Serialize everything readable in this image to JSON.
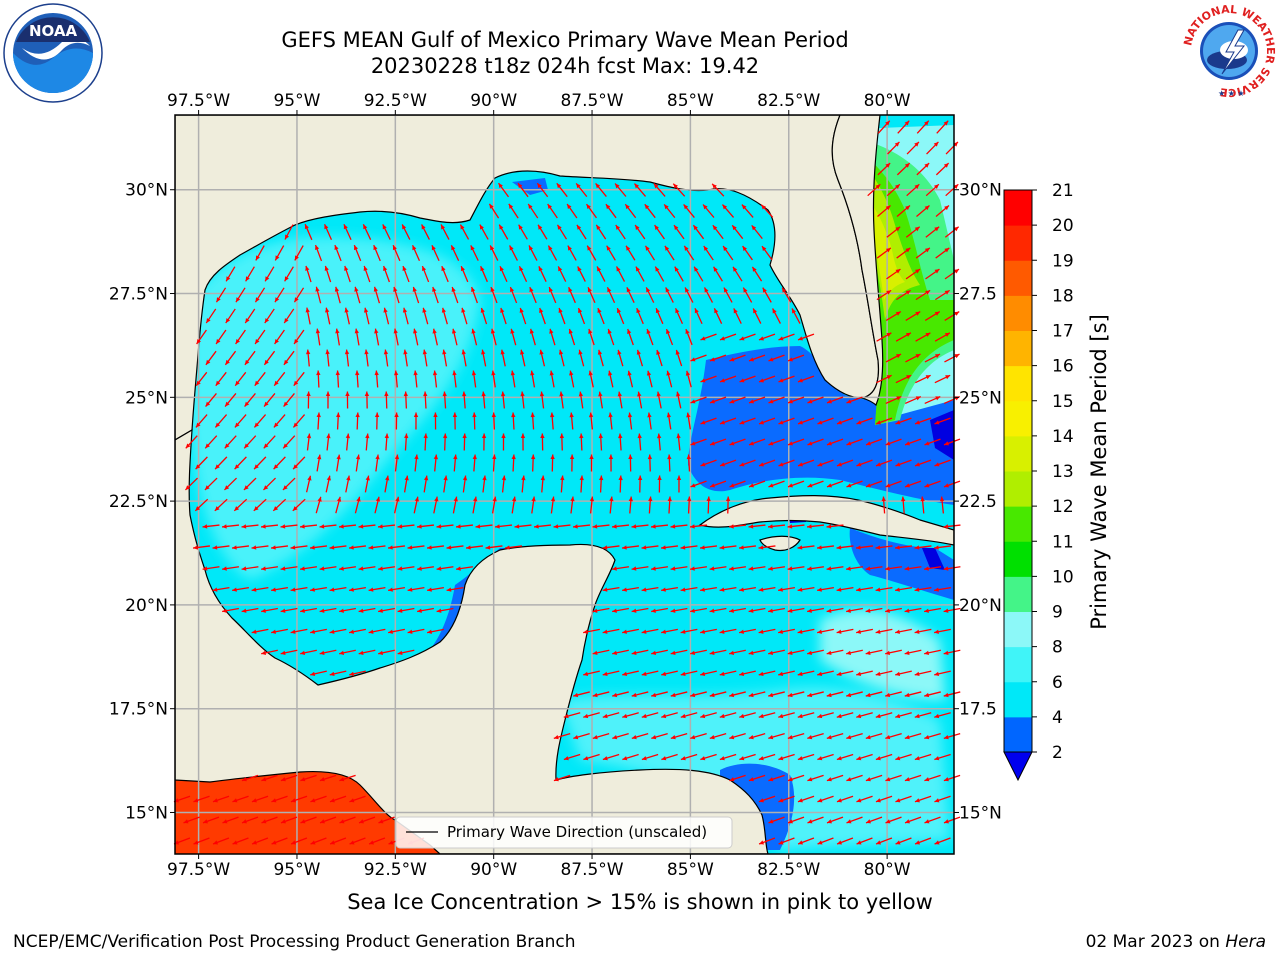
{
  "header": {
    "title_line1": "GEFS MEAN Gulf of Mexico Primary Wave Mean Period",
    "title_line2": "20230228 t18z 024h fcst   Max: 19.42"
  },
  "logos": {
    "noaa_text": "NOAA",
    "nws_ring_text": "NATIONAL WEATHER SERVICE"
  },
  "note": "Sea Ice Concentration > 15% is shown in pink to yellow",
  "footer": {
    "left": "NCEP/EMC/Verification Post Processing Product Generation Branch",
    "date": "02 Mar 2023 on ",
    "machine": "Hera"
  },
  "colors": {
    "land": "#efeddc",
    "ocean_bg": "#00e5f5",
    "grid": "#b0b0b0",
    "arrow": "#ff0000"
  },
  "chart_data": {
    "type": "heatmap",
    "variable": "Primary Wave Mean Period",
    "units": "s",
    "max_value": 19.42,
    "lon_ticks": [
      "97.5°W",
      "95°W",
      "92.5°W",
      "90°W",
      "87.5°W",
      "85°W",
      "82.5°W",
      "80°W"
    ],
    "lon_values": [
      -97.5,
      -95,
      -92.5,
      -90,
      -87.5,
      -85,
      -82.5,
      -80
    ],
    "lat_ticks_left": [
      "30°N",
      "27.5°N",
      "25°N",
      "22.5°N",
      "20°N",
      "17.5°N",
      "15°N"
    ],
    "lat_ticks_right": [
      "30°N",
      "27.5",
      "25°N",
      "22.5",
      "20°N",
      "17.5",
      "15°N"
    ],
    "lat_values": [
      30,
      27.5,
      25,
      22.5,
      20,
      17.5,
      15
    ],
    "xlim": [
      -98.1,
      -78.3
    ],
    "ylim": [
      14.0,
      31.8
    ],
    "colorbar": {
      "label": "Primary Wave Mean Period [s]",
      "levels": [
        2,
        4,
        6,
        8,
        9,
        10,
        11,
        12,
        13,
        14,
        15,
        16,
        17,
        18,
        19,
        20,
        21
      ],
      "tick_labels": [
        "2",
        "4",
        "6",
        "8",
        "9",
        "10",
        "11",
        "12",
        "13",
        "14",
        "15",
        "16",
        "17",
        "18",
        "19",
        "20",
        "21"
      ],
      "colors": [
        "#0066ff",
        "#00e8f8",
        "#40f4f8",
        "#8cf8f8",
        "#44f488",
        "#00e000",
        "#48e800",
        "#b0ee00",
        "#d8f000",
        "#f8f000",
        "#ffe400",
        "#ffb400",
        "#ff8c00",
        "#ff5a00",
        "#ff2800",
        "#ff0000"
      ],
      "under_color": "#0000ee",
      "extend": "min"
    },
    "legend": {
      "label": "Primary Wave Direction (unscaled)",
      "placement": "lower-center"
    },
    "field_regions": [
      {
        "name": "open-gulf",
        "period_range": [
          4,
          8
        ]
      },
      {
        "name": "se-gulf-florida-straits",
        "period_range": [
          2,
          4
        ]
      },
      {
        "name": "atlantic-florida-coast",
        "period_range": [
          9,
          13
        ]
      },
      {
        "name": "caribbean",
        "period_range": [
          4,
          8
        ]
      },
      {
        "name": "pacific-southwest",
        "period_range": [
          19,
          20
        ]
      }
    ]
  }
}
